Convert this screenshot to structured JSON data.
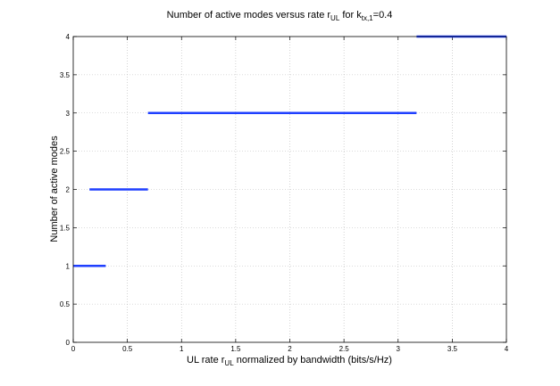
{
  "chart_data": {
    "type": "line",
    "title": {
      "prefix": "Number of active modes versus rate r",
      "prefix_sub": "UL",
      "middle": " for k",
      "middle_sub": "tx,1",
      "suffix": "=0.4"
    },
    "xlabel": {
      "prefix": "UL rate r",
      "sub": "UL",
      "suffix": " normalized by bandwidth (bits/s/Hz)"
    },
    "ylabel": "Number of active modes",
    "xlim": [
      0,
      4
    ],
    "ylim": [
      0,
      4
    ],
    "xticks": [
      "0",
      "0.5",
      "1",
      "1.5",
      "2",
      "2.5",
      "3",
      "3.5",
      "4"
    ],
    "yticks": [
      "0",
      "0.5",
      "1",
      "1.5",
      "2",
      "2.5",
      "3",
      "3.5",
      "4"
    ],
    "grid": true,
    "series": [
      {
        "color": "#1f3fff",
        "segments": [
          {
            "x": [
              0.0,
              0.3
            ],
            "y": 1
          },
          {
            "x": [
              0.15,
              0.69
            ],
            "y": 2
          },
          {
            "x": [
              0.69,
              3.17
            ],
            "y": 3
          },
          {
            "x": [
              3.17,
              4.0
            ],
            "y": 4
          }
        ]
      }
    ]
  }
}
